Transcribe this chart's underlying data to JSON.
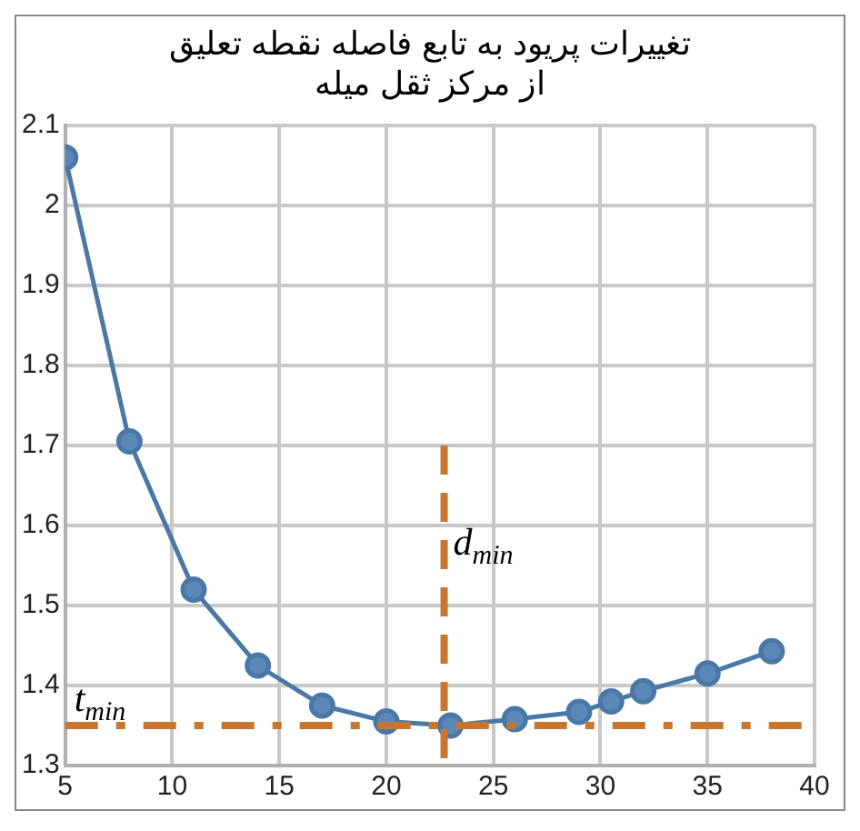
{
  "chart_data": {
    "type": "line",
    "title": "تغییرات پریود به تابع فاصله نقطه تعلیق از مرکز ثقل میله",
    "x": [
      5,
      8,
      11,
      14,
      17,
      20,
      23,
      26,
      29,
      30.5,
      32,
      35,
      38
    ],
    "series": [
      {
        "color": "#4a78a6",
        "values": [
          2.06,
          1.705,
          1.52,
          1.425,
          1.375,
          1.355,
          1.35,
          1.358,
          1.367,
          1.38,
          1.393,
          1.415,
          1.443
        ]
      }
    ],
    "xlim": [
      5,
      40
    ],
    "xticks": [
      5,
      10,
      15,
      20,
      25,
      30,
      35,
      40
    ],
    "ylim": [
      1.3,
      2.1
    ],
    "yticks": [
      1.3,
      1.4,
      1.5,
      1.6,
      1.7,
      1.8,
      1.9,
      2,
      2.1
    ],
    "ref_lines": [
      {
        "axis": "y",
        "value": 1.35,
        "label": "t$_{min}$",
        "color": "#c8762f",
        "line_style": "dashdot"
      },
      {
        "axis": "x",
        "value": 22.7,
        "label": "d$_{min}$",
        "color": "#c8762f",
        "line_style": "dashed"
      }
    ],
    "grid": true,
    "legend": false,
    "marker": "circle",
    "line_style": "solid"
  }
}
